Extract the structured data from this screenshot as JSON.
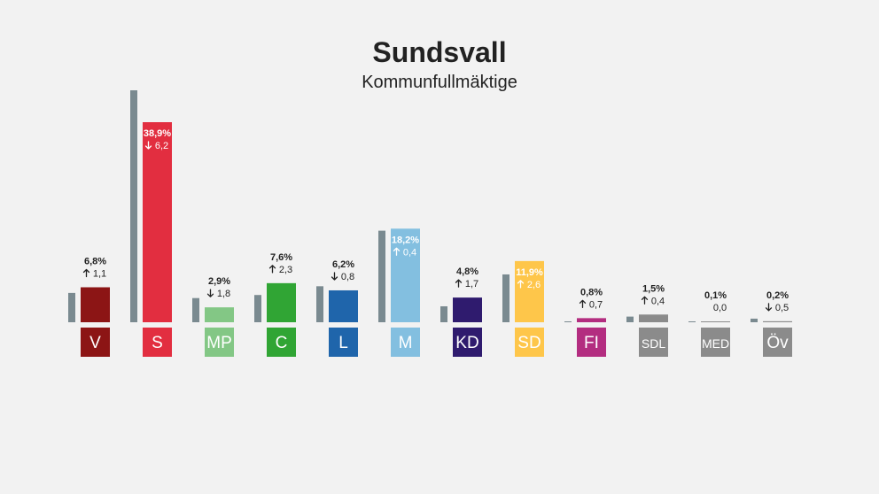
{
  "chart_data": {
    "type": "bar",
    "title": "Sundsvall",
    "subtitle": "Kommunfullmäktige",
    "categories": [
      "V",
      "S",
      "MP",
      "C",
      "L",
      "M",
      "KD",
      "SD",
      "FI",
      "SDL",
      "MED",
      "Öv"
    ],
    "series": [
      {
        "values": [
          6.8,
          38.9,
          2.9,
          7.6,
          6.2,
          18.2,
          4.8,
          11.9,
          0.8,
          1.5,
          0.1,
          0.2
        ]
      },
      {
        "values": [
          5.7,
          45.1,
          4.7,
          5.3,
          7.0,
          17.8,
          3.1,
          9.3,
          0.1,
          1.1,
          0.1,
          0.7
        ]
      }
    ],
    "value_labels": [
      "6,8%",
      "38,9%",
      "2,9%",
      "7,6%",
      "6,2%",
      "18,2%",
      "4,8%",
      "11,9%",
      "0,8%",
      "1,5%",
      "0,1%",
      "0,2%"
    ],
    "change_labels": [
      "1,1",
      "6,2",
      "1,8",
      "2,3",
      "0,8",
      "0,4",
      "1,7",
      "2,6",
      "0,7",
      "0,4",
      "0,0",
      "0,5"
    ],
    "change_direction": [
      "up",
      "down",
      "down",
      "up",
      "down",
      "up",
      "up",
      "up",
      "up",
      "up",
      "none",
      "down"
    ],
    "colors": [
      "#8c1515",
      "#e22e40",
      "#83c785",
      "#30a534",
      "#1f65ab",
      "#83bfe0",
      "#2f1b6e",
      "#fec64a",
      "#b32d80",
      "#8b8b8b",
      "#8b8b8b",
      "#8b8b8b"
    ],
    "previous_color": "#7a8a90",
    "ylim": [
      0,
      45.1
    ],
    "grid": false,
    "legend": "none"
  }
}
